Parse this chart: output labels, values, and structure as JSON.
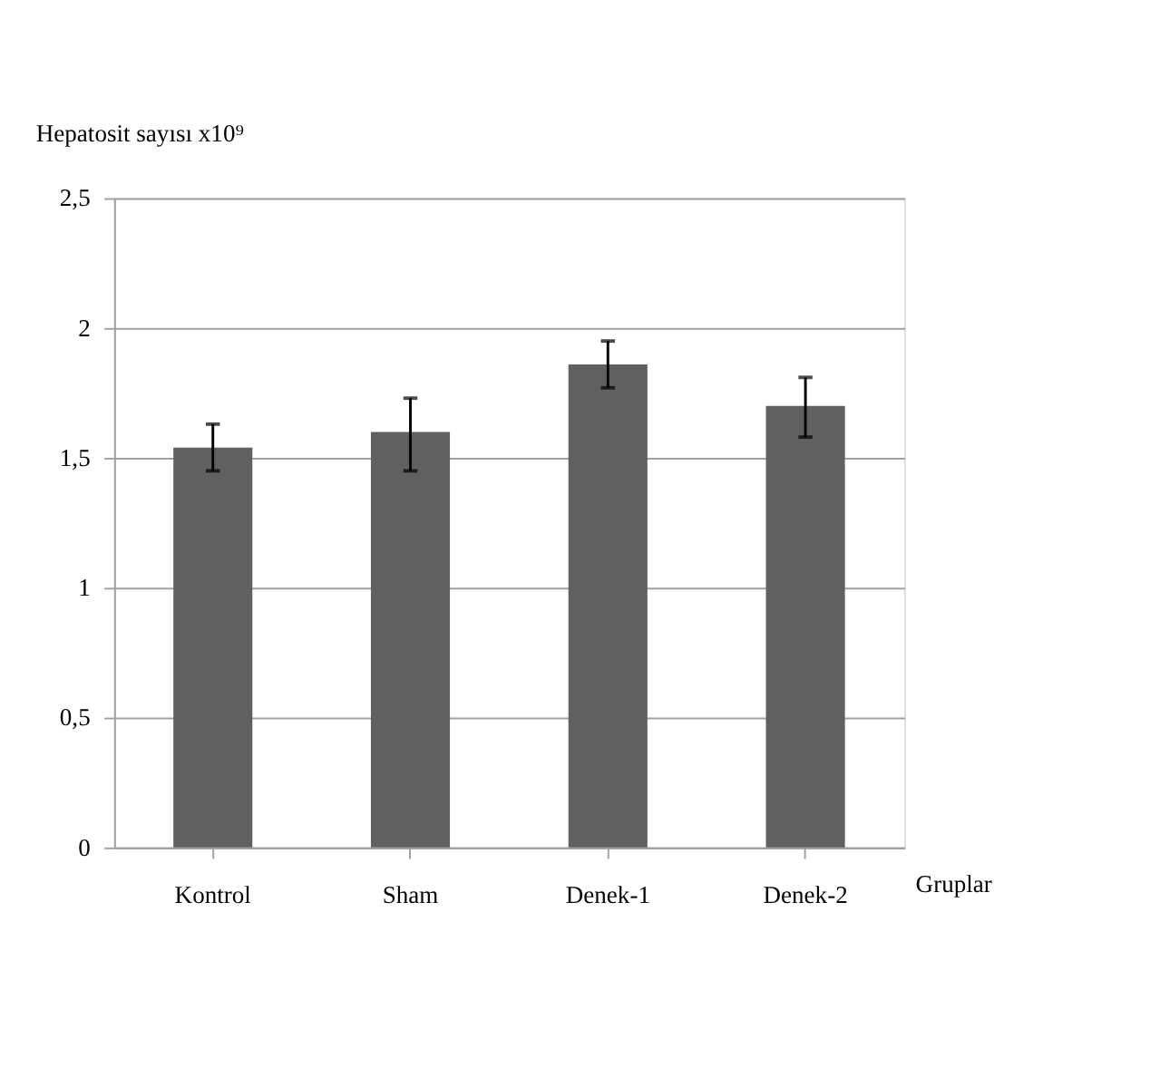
{
  "chart_data": {
    "type": "bar",
    "xlabel": "Gruplar",
    "ylabel": "Hepatosit sayısı x10⁹",
    "categories": [
      "Kontrol",
      "Sham",
      "Denek-1",
      "Denek-2"
    ],
    "values": [
      1.54,
      1.6,
      1.86,
      1.7
    ],
    "errors": [
      [
        1.45,
        1.63
      ],
      [
        1.45,
        1.73
      ],
      [
        1.77,
        1.95
      ],
      [
        1.58,
        1.81
      ]
    ],
    "color": "#606060",
    "ylim": [
      0,
      2.5
    ],
    "yticks": [
      {
        "value": 0,
        "label": "0"
      },
      {
        "value": 0.5,
        "label": "0,5"
      },
      {
        "value": 1,
        "label": "1"
      },
      {
        "value": 1.5,
        "label": "1,5"
      },
      {
        "value": 2,
        "label": "2"
      },
      {
        "value": 2.5,
        "label": "2,5"
      }
    ],
    "grid": "y"
  }
}
